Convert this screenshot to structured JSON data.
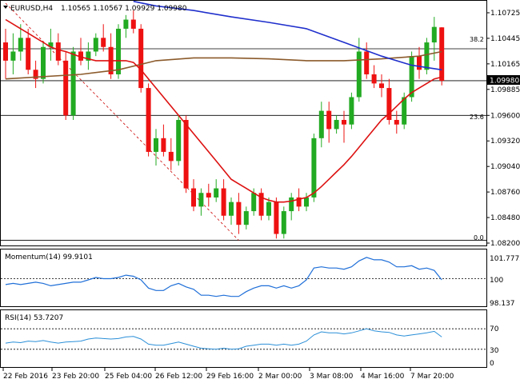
{
  "header": {
    "symbol_text": "EURUSD,H4",
    "ohlc_text": "1.10565 1.10567 1.09929 1.09980"
  },
  "panels": {
    "momentum": {
      "label": "Momentum(14) 99.9101",
      "ticks": [
        "101.7772",
        "100",
        "98.137"
      ]
    },
    "rsi": {
      "label": "RSI(14) 53.7207",
      "ticks": [
        "70",
        "30",
        "0"
      ]
    }
  },
  "price_axis": {
    "ticks": [
      "1.10725",
      "1.10445",
      "1.10165",
      "1.09885",
      "1.09600",
      "1.09320",
      "1.09040",
      "1.08760",
      "1.08480",
      "1.08200"
    ]
  },
  "current_price_label": "1.09980",
  "fib_labels": {
    "f382": "38.2",
    "f236": "23.6",
    "f0": "0.0"
  },
  "x_axis": {
    "ticks": [
      "22 Feb 2016",
      "23 Feb 20:00",
      "25 Feb 04:00",
      "26 Feb 12:00",
      "29 Feb 16:00",
      "2 Mar 00:00",
      "3 Mar 08:00",
      "4 Mar 16:00",
      "7 Mar 20:00"
    ]
  },
  "chart_data": {
    "type": "candlestick",
    "instrument": "EURUSD",
    "timeframe": "H4",
    "ohlc_last": {
      "open": 1.10565,
      "high": 1.10567,
      "low": 1.09929,
      "close": 1.0998
    },
    "price_range": [
      1.082,
      1.1083
    ],
    "fib_levels": {
      "0.0": 1.0823,
      "23.6": 1.096,
      "38.2": 1.1033
    },
    "horizontal_line": 1.0998,
    "candles": [
      [
        1.104,
        1.1055,
        1.1,
        1.102
      ],
      [
        1.102,
        1.105,
        1.1005,
        1.103
      ],
      [
        1.103,
        1.106,
        1.102,
        1.1045
      ],
      [
        1.1045,
        1.1055,
        1.1005,
        1.101
      ],
      [
        1.101,
        1.102,
        1.099,
        1.1
      ],
      [
        1.1,
        1.104,
        1.0995,
        1.1035
      ],
      [
        1.1035,
        1.1055,
        1.102,
        1.104
      ],
      [
        1.104,
        1.105,
        1.1015,
        1.102
      ],
      [
        1.102,
        1.103,
        1.0955,
        1.096
      ],
      [
        1.096,
        1.1035,
        1.0955,
        1.103
      ],
      [
        1.103,
        1.1045,
        1.1015,
        1.102
      ],
      [
        1.102,
        1.104,
        1.101,
        1.103
      ],
      [
        1.103,
        1.105,
        1.1025,
        1.1045
      ],
      [
        1.1045,
        1.106,
        1.103,
        1.1035
      ],
      [
        1.1035,
        1.105,
        1.1,
        1.1005
      ],
      [
        1.1005,
        1.106,
        1.1,
        1.1055
      ],
      [
        1.1055,
        1.107,
        1.1045,
        1.1065
      ],
      [
        1.1065,
        1.1075,
        1.105,
        1.1055
      ],
      [
        1.1055,
        1.106,
        1.0985,
        1.099
      ],
      [
        1.099,
        1.0995,
        1.0915,
        1.092
      ],
      [
        1.092,
        1.0945,
        1.0905,
        1.0935
      ],
      [
        1.0935,
        1.095,
        1.0915,
        1.092
      ],
      [
        1.092,
        1.0935,
        1.09,
        1.091
      ],
      [
        1.091,
        1.096,
        1.0905,
        1.0955
      ],
      [
        1.0955,
        1.096,
        1.0875,
        1.088
      ],
      [
        1.088,
        1.089,
        1.0855,
        1.086
      ],
      [
        1.086,
        1.088,
        1.085,
        1.0875
      ],
      [
        1.0875,
        1.0885,
        1.086,
        1.087
      ],
      [
        1.087,
        1.089,
        1.0865,
        1.088
      ],
      [
        1.088,
        1.089,
        1.0845,
        1.085
      ],
      [
        1.085,
        1.087,
        1.084,
        1.0865
      ],
      [
        1.0865,
        1.0875,
        1.083,
        1.084
      ],
      [
        1.084,
        1.086,
        1.0835,
        1.0855
      ],
      [
        1.0855,
        1.088,
        1.085,
        1.0875
      ],
      [
        1.0875,
        1.088,
        1.0845,
        1.085
      ],
      [
        1.085,
        1.087,
        1.0845,
        1.0865
      ],
      [
        1.0865,
        1.087,
        1.0825,
        1.083
      ],
      [
        1.083,
        1.086,
        1.0825,
        1.0855
      ],
      [
        1.0855,
        1.0875,
        1.0845,
        1.087
      ],
      [
        1.087,
        1.088,
        1.0855,
        1.086
      ],
      [
        1.086,
        1.0875,
        1.0855,
        1.087
      ],
      [
        1.087,
        1.094,
        1.0865,
        1.0935
      ],
      [
        1.0935,
        1.0975,
        1.0925,
        1.0965
      ],
      [
        1.0965,
        1.0975,
        1.093,
        1.0945
      ],
      [
        1.0945,
        1.096,
        1.094,
        1.0955
      ],
      [
        1.0955,
        1.0965,
        1.093,
        1.095
      ],
      [
        1.095,
        1.0985,
        1.0945,
        1.098
      ],
      [
        1.098,
        1.1045,
        1.0975,
        1.103
      ],
      [
        1.103,
        1.104,
        1.1,
        1.1005
      ],
      [
        1.1005,
        1.1015,
        1.099,
        1.0995
      ],
      [
        1.0995,
        1.1005,
        1.098,
        1.099
      ],
      [
        1.099,
        1.1,
        1.095,
        1.0955
      ],
      [
        1.0955,
        1.0965,
        1.094,
        1.095
      ],
      [
        1.095,
        1.0985,
        1.0945,
        1.098
      ],
      [
        1.098,
        1.103,
        1.0975,
        1.1025
      ],
      [
        1.1025,
        1.1035,
        1.1,
        1.101
      ],
      [
        1.101,
        1.1045,
        1.1005,
        1.104
      ],
      [
        1.104,
        1.1068,
        1.102,
        1.1057
      ],
      [
        1.10565,
        1.10567,
        1.09929,
        1.0998
      ]
    ],
    "ma_red": [
      1.1065,
      1.106,
      1.1055,
      1.105,
      1.1045,
      1.104,
      1.1035,
      1.1032,
      1.103,
      1.1027,
      1.1024,
      1.1022,
      1.102,
      1.102,
      1.102,
      1.102,
      1.102,
      1.1018,
      1.101,
      1.1,
      1.099,
      1.098,
      1.097,
      1.096,
      1.095,
      1.094,
      1.093,
      1.092,
      1.091,
      1.09,
      1.089,
      1.0885,
      1.088,
      1.0875,
      1.087,
      1.0867,
      1.0865,
      1.0865,
      1.0866,
      1.0868,
      1.087,
      1.0875,
      1.0882,
      1.089,
      1.0898,
      1.0906,
      1.0915,
      1.0925,
      1.0935,
      1.0945,
      1.0955,
      1.0962,
      1.097,
      1.0978,
      1.0985,
      1.099,
      1.0995,
      1.1,
      1.1002
    ],
    "ma_blue": [
      null,
      null,
      null,
      null,
      null,
      null,
      null,
      null,
      null,
      null,
      null,
      null,
      null,
      null,
      null,
      null,
      null,
      null,
      null,
      null,
      null,
      null,
      null,
      null,
      null,
      null,
      null,
      null,
      null,
      null,
      null,
      null,
      null,
      null,
      null,
      null,
      null,
      null,
      null,
      null,
      null,
      null,
      null,
      null,
      null,
      null,
      null,
      null,
      null,
      null,
      null,
      null,
      null,
      null,
      null,
      null,
      null,
      null,
      null,
      null
    ],
    "ma_blue_points": [
      [
        17,
        1.1085
      ],
      [
        20,
        1.108
      ],
      [
        25,
        1.1075
      ],
      [
        30,
        1.1068
      ],
      [
        35,
        1.1062
      ],
      [
        40,
        1.1055
      ],
      [
        45,
        1.104
      ],
      [
        50,
        1.1025
      ],
      [
        54,
        1.1015
      ],
      [
        58,
        1.101
      ]
    ],
    "ma_brown_points": [
      [
        0,
        1.1
      ],
      [
        10,
        1.1005
      ],
      [
        15,
        1.101
      ],
      [
        20,
        1.102
      ],
      [
        25,
        1.1023
      ],
      [
        30,
        1.1023
      ],
      [
        35,
        1.1022
      ],
      [
        40,
        1.102
      ],
      [
        45,
        1.102
      ],
      [
        50,
        1.1022
      ],
      [
        55,
        1.1025
      ],
      [
        58,
        1.103
      ]
    ],
    "fib_diagonal": {
      "from": [
        0,
        1.1083
      ],
      "to": [
        31,
        1.0823
      ]
    },
    "momentum": {
      "ylim": [
        97.8,
        102.2
      ],
      "values": [
        99.5,
        99.6,
        99.5,
        99.6,
        99.7,
        99.6,
        99.4,
        99.5,
        99.6,
        99.7,
        99.7,
        99.9,
        100.1,
        100.0,
        100.0,
        100.1,
        100.3,
        100.2,
        99.9,
        99.2,
        99.0,
        99.0,
        99.4,
        99.6,
        99.3,
        99.1,
        98.6,
        98.6,
        98.5,
        98.6,
        98.5,
        98.5,
        98.9,
        99.2,
        99.4,
        99.4,
        99.2,
        99.4,
        99.2,
        99.4,
        99.9,
        100.9,
        101.0,
        100.9,
        100.9,
        100.8,
        101.0,
        101.5,
        101.8,
        101.6,
        101.6,
        101.4,
        101.0,
        101.0,
        101.1,
        100.8,
        100.9,
        100.7,
        99.9
      ]
    },
    "rsi": {
      "ylim": [
        0,
        100
      ],
      "values": [
        42,
        44,
        43,
        46,
        45,
        47,
        44,
        42,
        44,
        45,
        46,
        50,
        52,
        51,
        50,
        51,
        54,
        55,
        50,
        40,
        38,
        38,
        41,
        44,
        40,
        36,
        32,
        31,
        30,
        32,
        30,
        31,
        36,
        38,
        40,
        40,
        38,
        40,
        38,
        40,
        46,
        58,
        64,
        62,
        62,
        60,
        62,
        66,
        70,
        66,
        64,
        63,
        58,
        56,
        58,
        60,
        62,
        65,
        54
      ]
    }
  }
}
